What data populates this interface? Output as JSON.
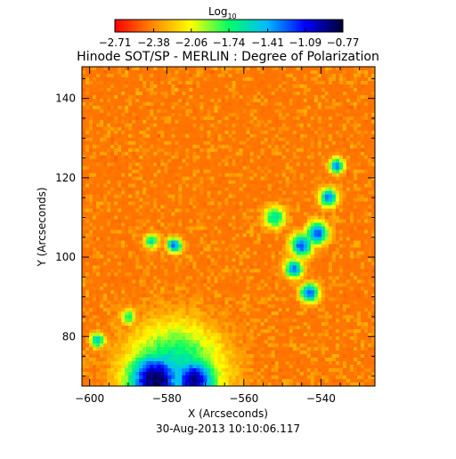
{
  "chart_data": {
    "type": "heatmap",
    "title": "Hinode SOT/SP - MERLIN : Degree of Polarization",
    "footer": "30-Aug-2013 10:10:06.117",
    "xlabel": "X (Arcseconds)",
    "ylabel": "Y (Arcseconds)",
    "xlim": [
      -602,
      -526
    ],
    "ylim": [
      67.5,
      148
    ],
    "x_ticks": [
      -600,
      -580,
      -560,
      -540
    ],
    "x_tick_labels": [
      "−600",
      "−580",
      "−560",
      "−540"
    ],
    "y_ticks": [
      80,
      100,
      120,
      140
    ],
    "y_tick_labels": [
      "80",
      "100",
      "120",
      "140"
    ],
    "colorbar": {
      "label": "Log",
      "label_subscript": "10",
      "range": [
        -2.71,
        -0.77
      ],
      "tick_values": [
        -2.71,
        -2.38,
        -2.06,
        -1.74,
        -1.41,
        -1.09,
        -0.77
      ],
      "tick_labels": [
        "−2.71",
        "−2.38",
        "−2.06",
        "−1.74",
        "−1.41",
        "−1.09",
        "−0.77"
      ],
      "colors": [
        "#ff0000",
        "#ff8800",
        "#ffff00",
        "#00ff66",
        "#00bbff",
        "#0000ff",
        "#000030"
      ]
    },
    "features": [
      {
        "x": -583,
        "y": 69,
        "sigma": 7.5,
        "value": -0.8
      },
      {
        "x": -573,
        "y": 69,
        "sigma": 6,
        "value": -0.9
      },
      {
        "x": -578,
        "y": 70,
        "sigma": 13,
        "value": -1.45
      },
      {
        "x": -545,
        "y": 103,
        "sigma": 3,
        "value": -1.2
      },
      {
        "x": -541,
        "y": 106,
        "sigma": 3,
        "value": -1.2
      },
      {
        "x": -547,
        "y": 97,
        "sigma": 2.5,
        "value": -1.3
      },
      {
        "x": -543,
        "y": 91,
        "sigma": 2.5,
        "value": -1.2
      },
      {
        "x": -538,
        "y": 115,
        "sigma": 2.5,
        "value": -1.3
      },
      {
        "x": -536,
        "y": 123,
        "sigma": 2,
        "value": -1.3
      },
      {
        "x": -578,
        "y": 103,
        "sigma": 2,
        "value": -1.25
      },
      {
        "x": -552,
        "y": 110,
        "sigma": 3,
        "value": -1.6
      },
      {
        "x": -598,
        "y": 79,
        "sigma": 2,
        "value": -1.5
      },
      {
        "x": -590,
        "y": 85,
        "sigma": 2,
        "value": -1.7
      },
      {
        "x": -584,
        "y": 104,
        "sigma": 2,
        "value": -1.6
      }
    ],
    "background_value": -2.5
  }
}
